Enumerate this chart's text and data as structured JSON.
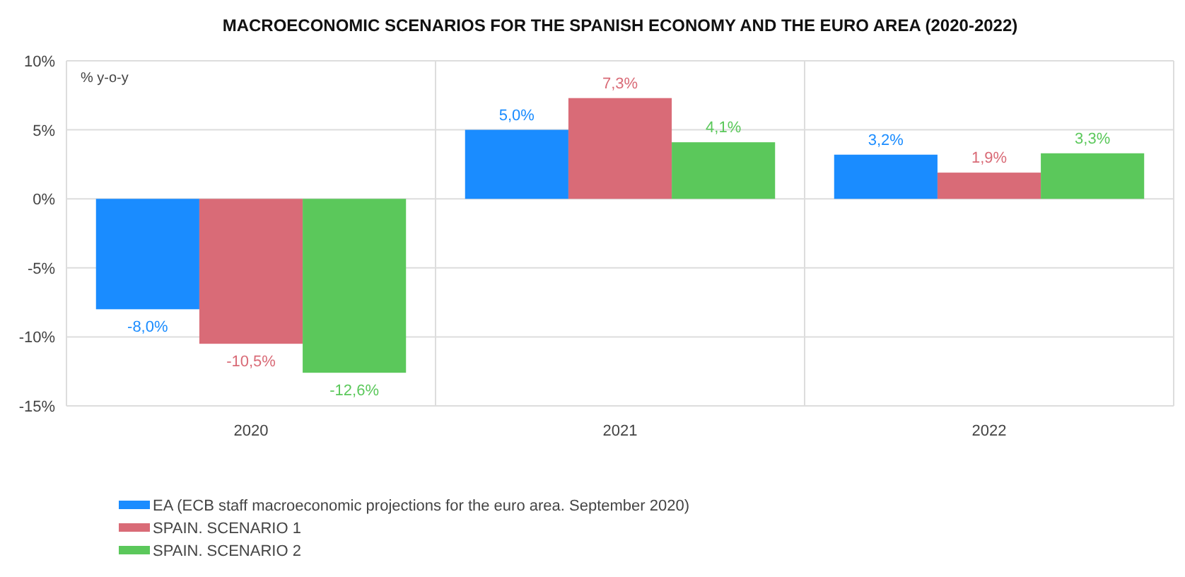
{
  "chart_data": {
    "type": "bar",
    "title": "MACROECONOMIC SCENARIOS FOR THE SPANISH ECONOMY AND THE EURO AREA (2020-2022)",
    "annotations": [
      "% y-o-y"
    ],
    "categories": [
      "2020",
      "2021",
      "2022"
    ],
    "series": [
      {
        "name": "EA (ECB staff macroeconomic projections for the euro area. September 2020)",
        "color": "#1a8cff",
        "values": [
          -8.0,
          5.0,
          3.2
        ],
        "value_labels": [
          "-8,0%",
          "5,0%",
          "3,2%"
        ]
      },
      {
        "name": "SPAIN. SCENARIO 1",
        "color": "#d96b77",
        "values": [
          -10.5,
          7.3,
          1.9
        ],
        "value_labels": [
          "-10,5%",
          "7,3%",
          "1,9%"
        ]
      },
      {
        "name": "SPAIN. SCENARIO 2",
        "color": "#5bc85b",
        "values": [
          -12.6,
          4.1,
          3.3
        ],
        "value_labels": [
          "-12,6%",
          "4,1%",
          "3,3%"
        ]
      }
    ],
    "ylim": [
      -15,
      10
    ],
    "yticks": [
      {
        "value": -15,
        "label": "-15%"
      },
      {
        "value": -10,
        "label": "-10%"
      },
      {
        "value": -5,
        "label": "-5%"
      },
      {
        "value": 0,
        "label": "0%"
      },
      {
        "value": 5,
        "label": "5%"
      },
      {
        "value": 10,
        "label": "10%"
      }
    ],
    "grid": true,
    "legend": "bottom left"
  }
}
